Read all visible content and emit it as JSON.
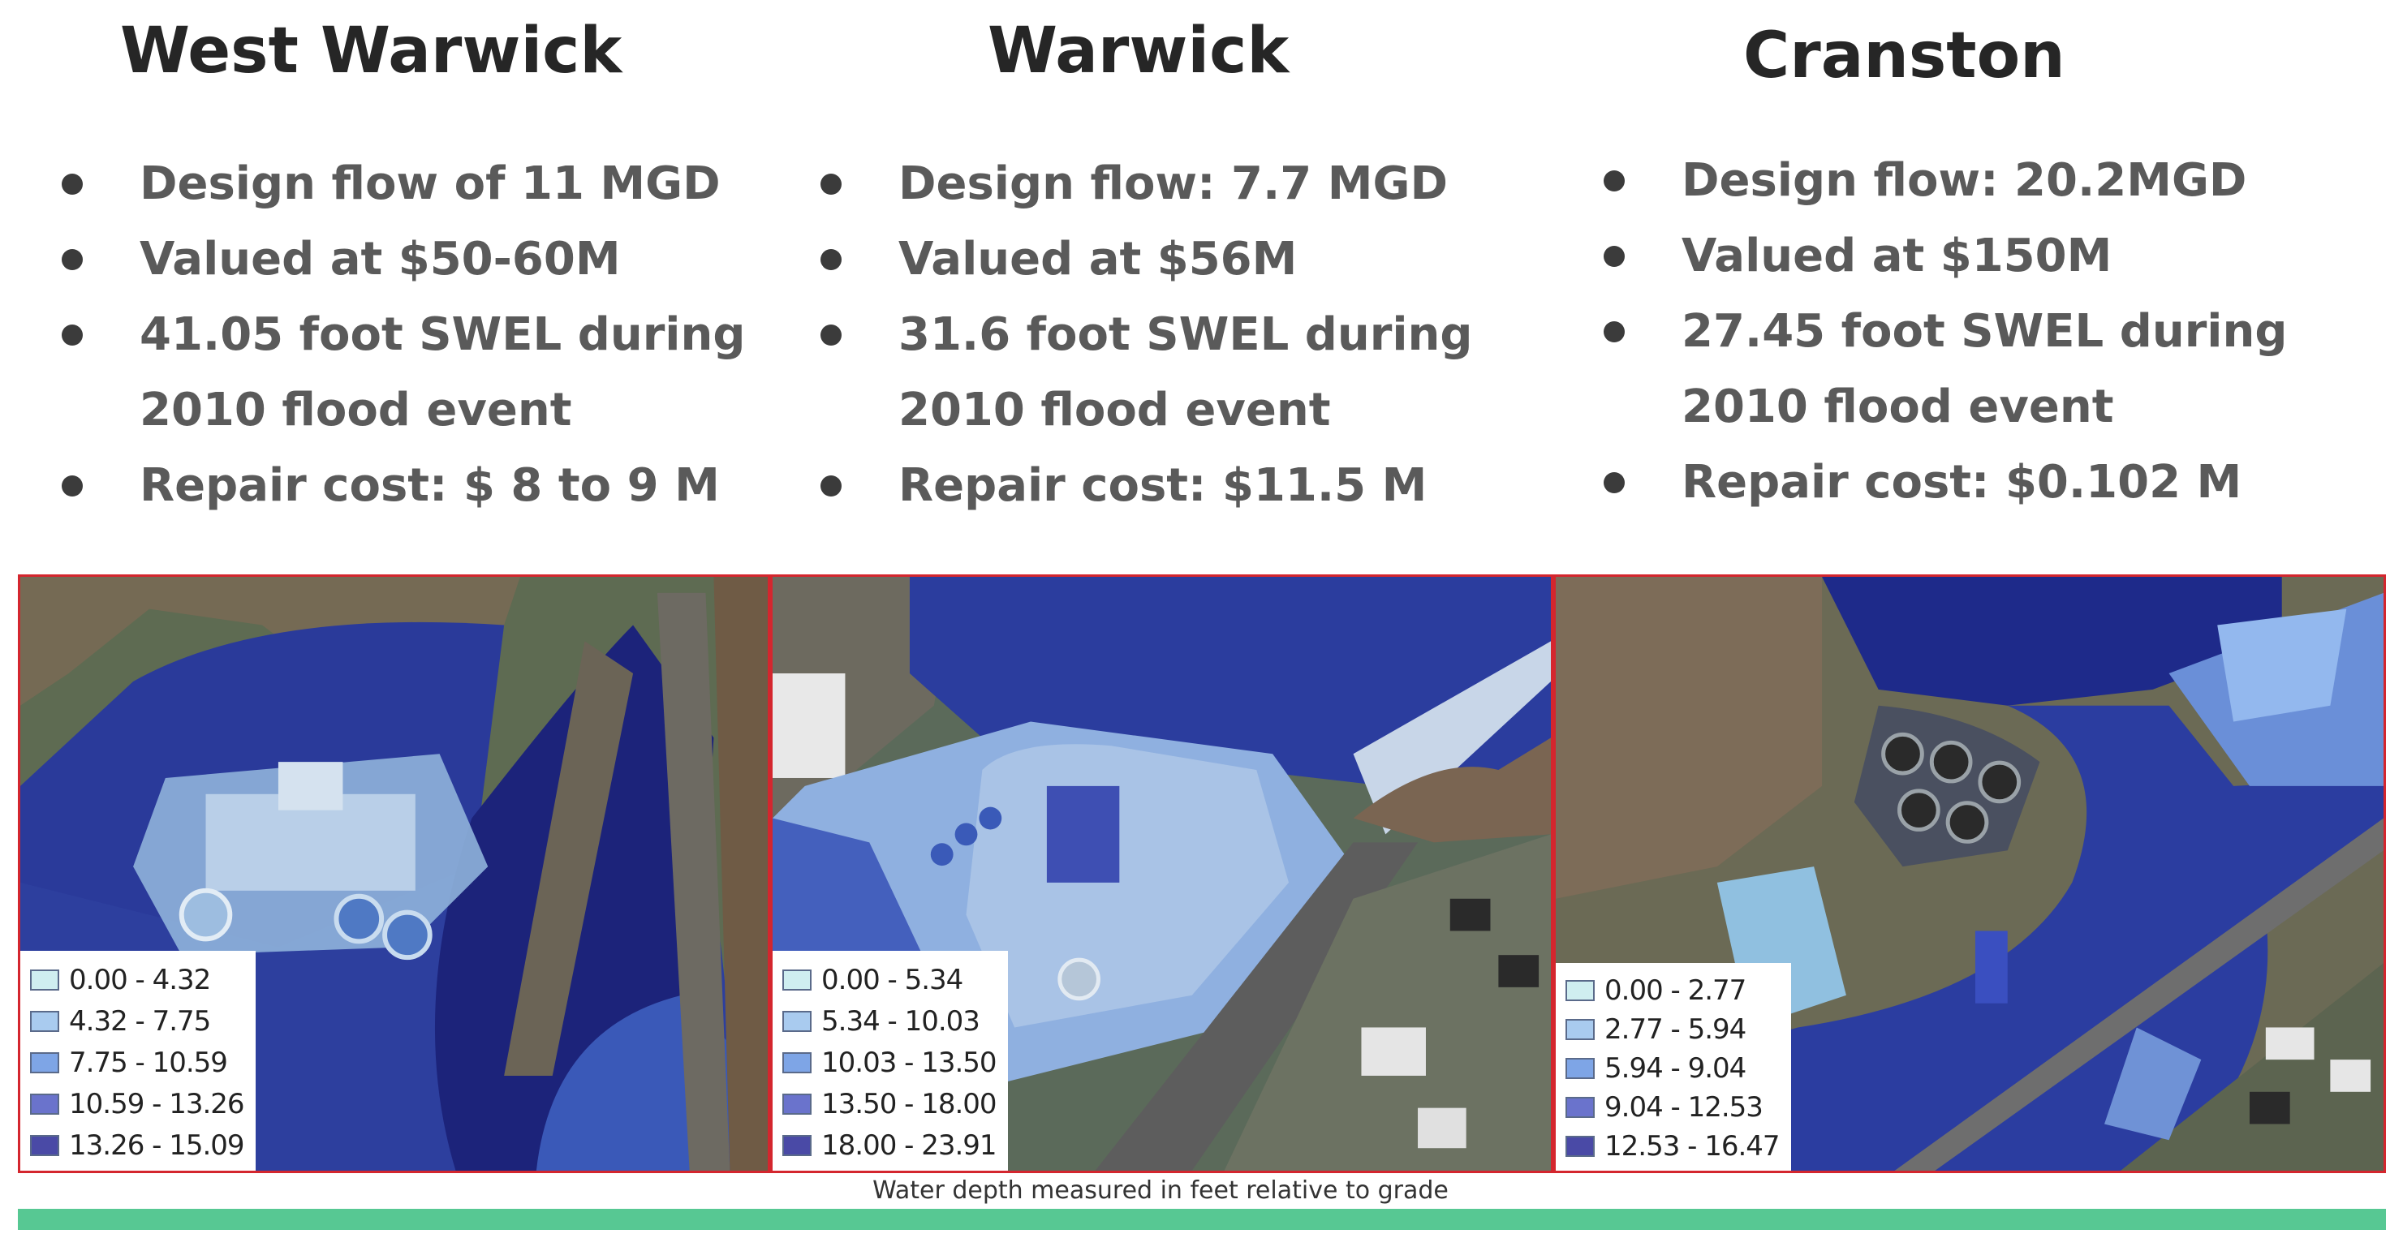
{
  "sites": [
    {
      "title": "West Warwick",
      "bullets": [
        {
          "lines": [
            "Design flow of 11 MGD"
          ]
        },
        {
          "lines": [
            "Valued at  $50-60M"
          ]
        },
        {
          "lines": [
            "41.05 foot SWEL during",
            "2010 flood event"
          ]
        },
        {
          "lines": [
            "Repair cost: $ 8 to 9 M"
          ]
        }
      ],
      "legend": [
        "0.00 - 4.32",
        "4.32 - 7.75",
        "7.75 - 10.59",
        "10.59 - 13.26",
        "13.26 - 15.09"
      ]
    },
    {
      "title": "Warwick",
      "bullets": [
        {
          "lines": [
            "Design flow: 7.7 MGD"
          ]
        },
        {
          "lines": [
            "Valued at $56M"
          ]
        },
        {
          "lines": [
            "31.6 foot SWEL during",
            "2010 flood event"
          ]
        },
        {
          "lines": [
            "Repair cost: $11.5 M"
          ]
        }
      ],
      "legend": [
        "0.00 - 5.34",
        "5.34 - 10.03",
        "10.03 - 13.50",
        "13.50 - 18.00",
        "18.00 - 23.91"
      ]
    },
    {
      "title": "Cranston",
      "bullets": [
        {
          "lines": [
            "Design flow: 20.2MGD"
          ]
        },
        {
          "lines": [
            "Valued at $150M"
          ]
        },
        {
          "lines": [
            "27.45 foot SWEL during",
            "2010  flood event"
          ]
        },
        {
          "lines": [
            "Repair cost: $0.102 M"
          ]
        }
      ],
      "legend": [
        "0.00 - 2.77",
        "2.77 - 5.94",
        "5.94 - 9.04",
        "9.04 - 12.53",
        "12.53 - 16.47"
      ]
    }
  ],
  "caption": "Water depth measured in feet relative to grade",
  "legend_colors": [
    "#cfeef0",
    "#a9cbef",
    "#7ea5e6",
    "#6a73cc",
    "#4a4aa6"
  ],
  "colors": {
    "map_border": "#d4262e",
    "green_bar": "#57c893",
    "flood_deep": "#1f2d8a",
    "flood_mid": "#3a5cc0",
    "flood_light": "#8fb3e0"
  }
}
